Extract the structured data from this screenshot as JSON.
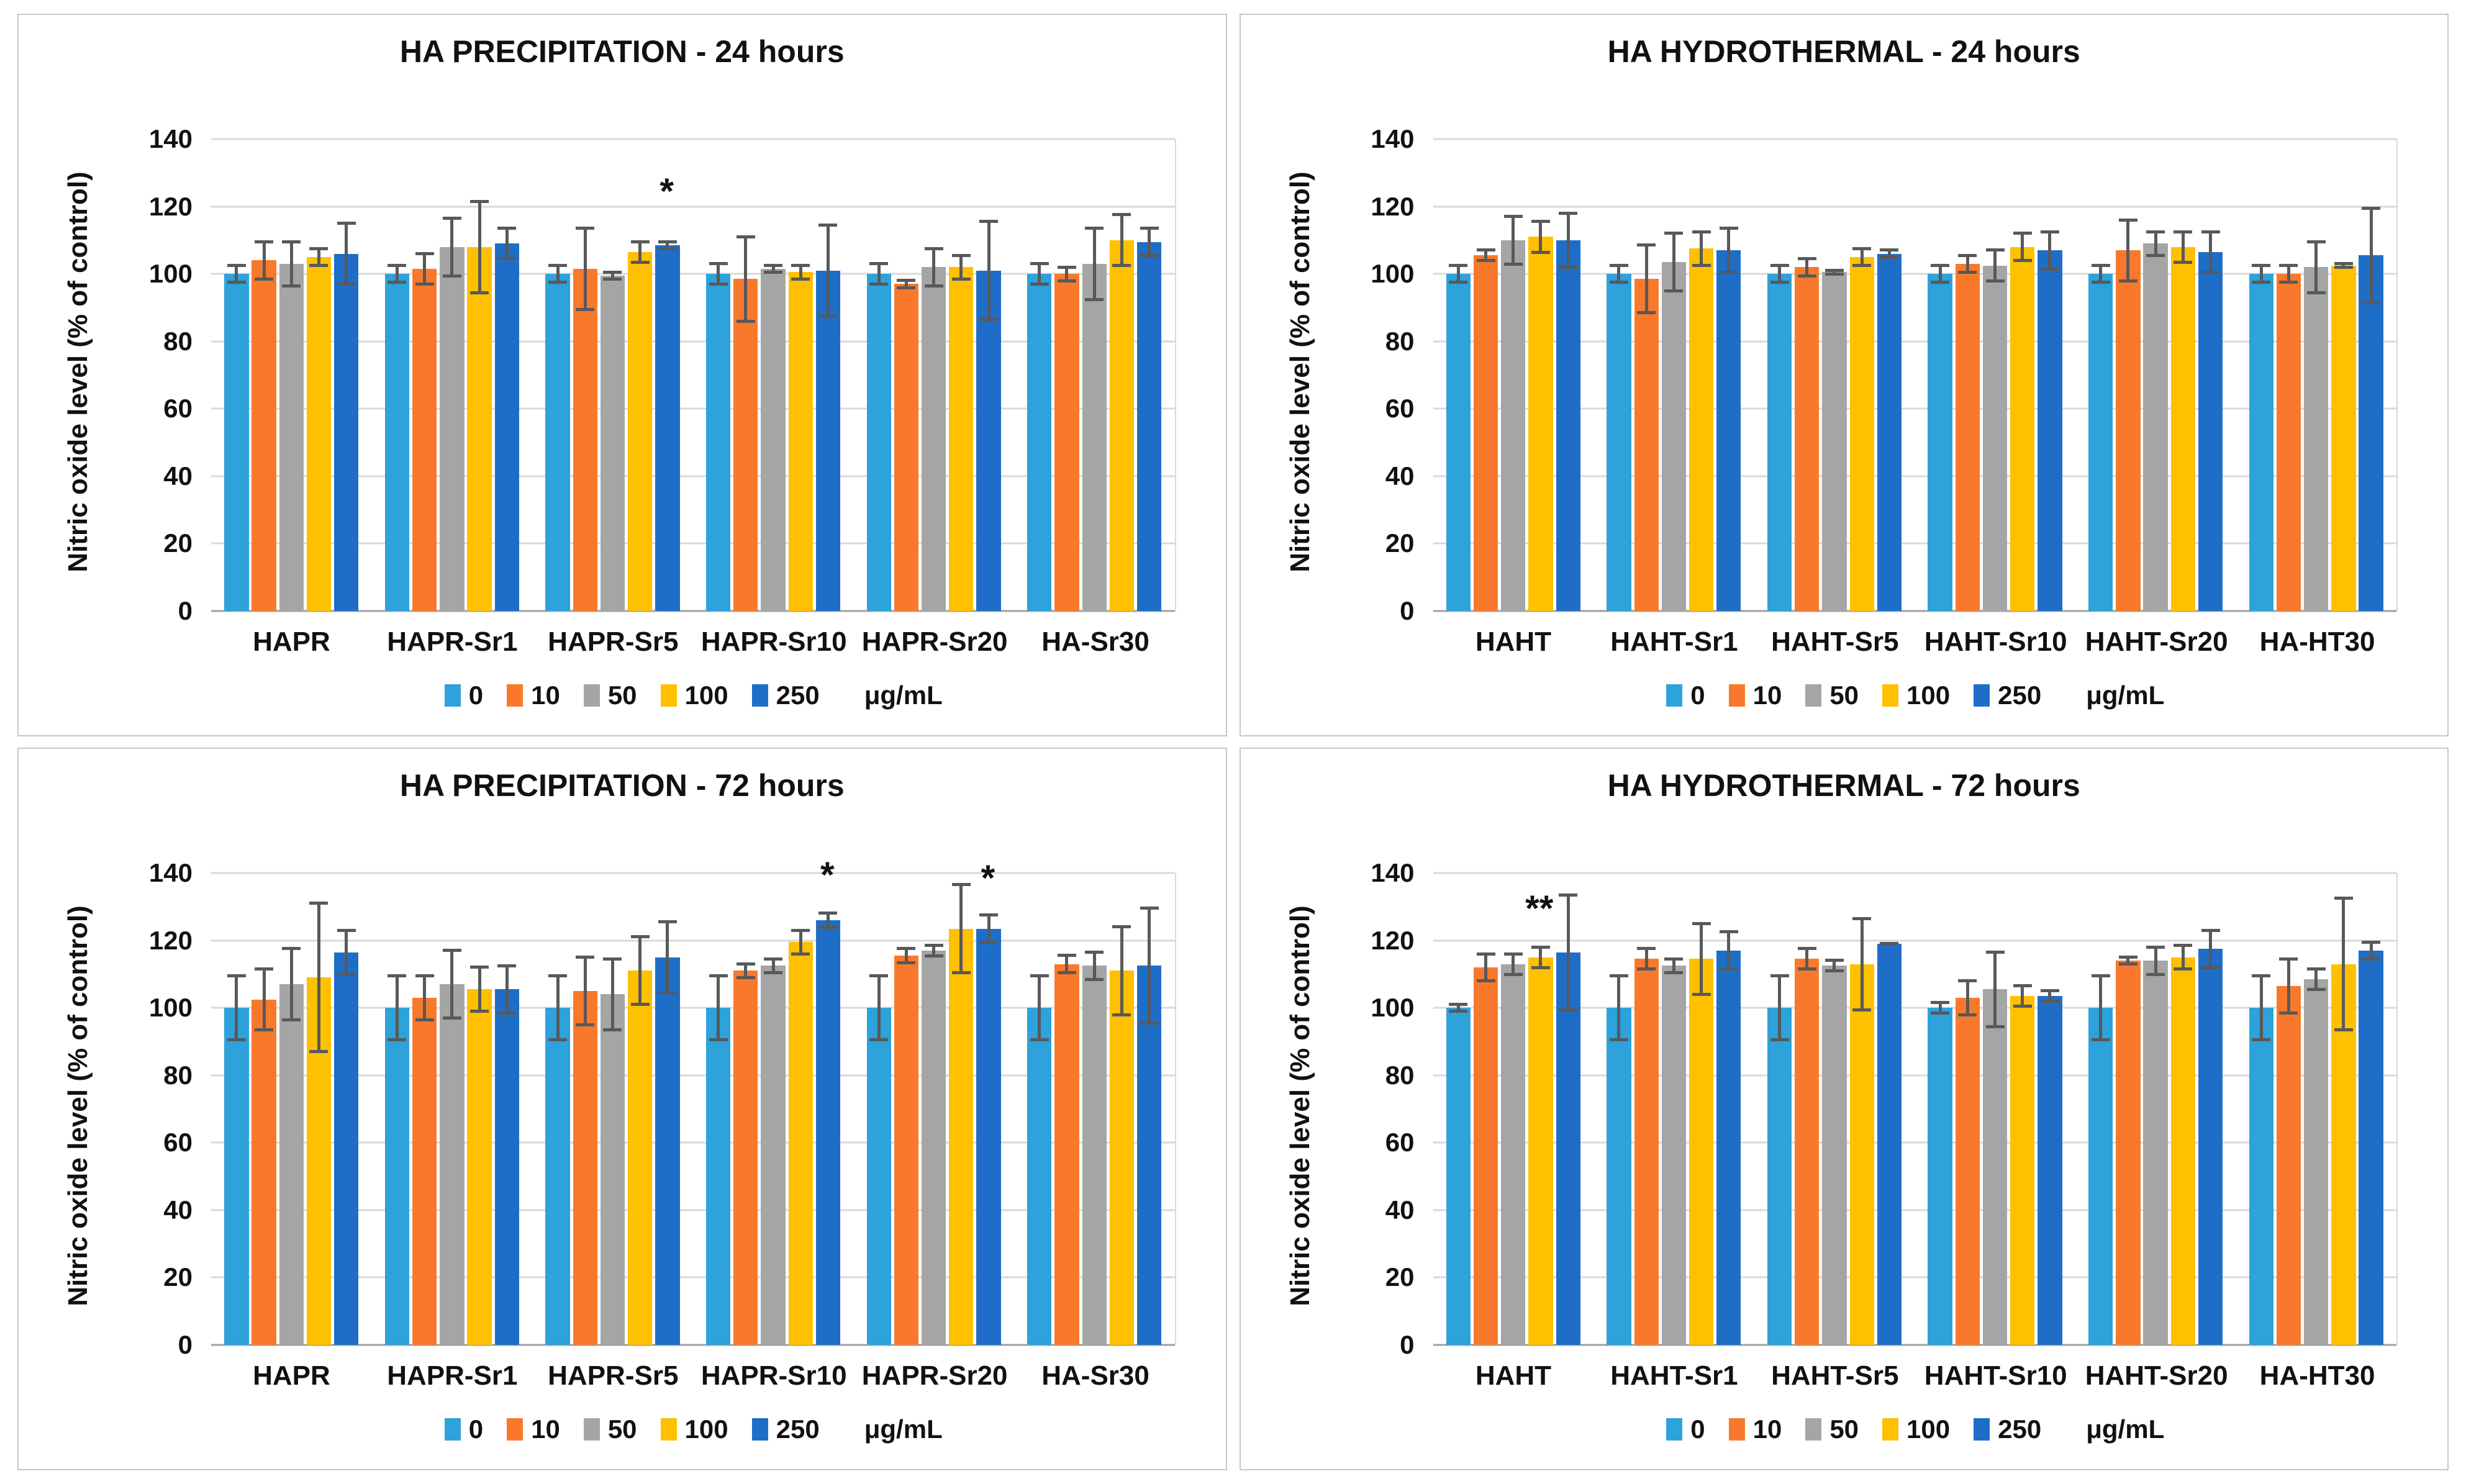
{
  "figure": {
    "background": "#ffffff",
    "panel_border_color": "#c7c7c7",
    "gridline_color": "#d9d9d9",
    "error_bar_color": "#58595b"
  },
  "legend": {
    "items": [
      {
        "label": "0",
        "color": "#2da2db"
      },
      {
        "label": "10",
        "color": "#f8792b"
      },
      {
        "label": "50",
        "color": "#a5a5a5"
      },
      {
        "label": "100",
        "color": "#ffc000"
      },
      {
        "label": "250",
        "color": "#1e6ec8"
      }
    ],
    "unit": "μg/mL"
  },
  "chart_data": [
    {
      "type": "bar",
      "title": "HA PRECIPITATION - 24 hours",
      "ylabel": "Nitric oxide level (% of control)",
      "ylim": [
        0,
        140
      ],
      "ytick_step": 20,
      "grid": "horizontal",
      "legend_position": "bottom",
      "series_labels": [
        "0",
        "10",
        "50",
        "100",
        "250"
      ],
      "unit": "μg/mL",
      "categories": [
        "HAPR",
        "HAPR-Sr1",
        "HAPR-Sr5",
        "HAPR-Sr10",
        "HAPR-Sr20",
        "HA-Sr30"
      ],
      "values": [
        [
          100,
          104,
          103,
          105,
          106
        ],
        [
          100,
          101.5,
          108,
          108,
          109
        ],
        [
          100,
          101.5,
          99.5,
          106.5,
          108.5
        ],
        [
          100,
          98.5,
          101.5,
          100.5,
          101
        ],
        [
          100,
          97,
          102,
          102,
          101
        ],
        [
          100,
          100,
          103,
          110,
          109.5
        ]
      ],
      "errors": [
        [
          3,
          6,
          7,
          3,
          9.5
        ],
        [
          3,
          5,
          9,
          14,
          5
        ],
        [
          3,
          12.5,
          1.5,
          3.5,
          1.5
        ],
        [
          3.5,
          13,
          1.5,
          2.5,
          14
        ],
        [
          3.5,
          1.5,
          6,
          4,
          15
        ],
        [
          3.5,
          2.5,
          11,
          8,
          4.5
        ]
      ],
      "annotations": [
        {
          "category_index": 2,
          "series_index": 4,
          "text": "*",
          "y": 121
        }
      ]
    },
    {
      "type": "bar",
      "title": "HA HYDROTHERMAL - 24 hours",
      "ylabel": "Nitric oxide level (% of control)",
      "ylim": [
        0,
        140
      ],
      "ytick_step": 20,
      "grid": "horizontal",
      "legend_position": "bottom",
      "series_labels": [
        "0",
        "10",
        "50",
        "100",
        "250"
      ],
      "unit": "μg/mL",
      "categories": [
        "HAHT",
        "HAHT-Sr1",
        "HAHT-Sr5",
        "HAHT-Sr10",
        "HAHT-Sr20",
        "HA-HT30"
      ],
      "values": [
        [
          100,
          105.5,
          110,
          111,
          110
        ],
        [
          100,
          98.5,
          103.5,
          107.5,
          107
        ],
        [
          100,
          102,
          100.5,
          105,
          106
        ],
        [
          100,
          103,
          102.5,
          108,
          107
        ],
        [
          100,
          107,
          109,
          108,
          106.5
        ],
        [
          100,
          100,
          102,
          102.5,
          105.5
        ]
      ],
      "errors": [
        [
          3,
          2,
          7.5,
          5,
          8.5
        ],
        [
          3,
          10.5,
          9,
          5.5,
          7
        ],
        [
          3,
          3,
          1,
          3,
          1.5
        ],
        [
          3,
          3,
          5,
          4.5,
          6
        ],
        [
          3,
          9.5,
          4,
          5,
          6.5
        ],
        [
          3,
          3,
          8,
          1,
          14.5
        ]
      ],
      "annotations": []
    },
    {
      "type": "bar",
      "title": "HA PRECIPITATION - 72 hours",
      "ylabel": "Nitric oxide level (% of control)",
      "ylim": [
        0,
        140
      ],
      "ytick_step": 20,
      "grid": "horizontal",
      "legend_position": "bottom",
      "series_labels": [
        "0",
        "10",
        "50",
        "100",
        "250"
      ],
      "unit": "μg/mL",
      "categories": [
        "HAPR",
        "HAPR-Sr1",
        "HAPR-Sr5",
        "HAPR-Sr10",
        "HAPR-Sr20",
        "HA-Sr30"
      ],
      "values": [
        [
          100,
          102.5,
          107,
          109,
          116.5
        ],
        [
          100,
          103,
          107,
          105.5,
          105.5
        ],
        [
          100,
          105,
          104,
          111,
          115
        ],
        [
          100,
          111,
          112.5,
          119.5,
          126
        ],
        [
          100,
          115.5,
          117,
          123.5,
          123.5
        ],
        [
          100,
          113,
          112.5,
          111,
          112.5
        ]
      ],
      "errors": [
        [
          10,
          9.5,
          11,
          22.5,
          7
        ],
        [
          10,
          7,
          10.5,
          7,
          7.5
        ],
        [
          10,
          10.5,
          11,
          10.5,
          11
        ],
        [
          10,
          2.5,
          2.5,
          4,
          2.5
        ],
        [
          10,
          2.5,
          2,
          13.5,
          4.5
        ],
        [
          10,
          3,
          4.5,
          13.5,
          17.5
        ]
      ],
      "annotations": [
        {
          "category_index": 3,
          "series_index": 4,
          "text": "*",
          "y": 136
        },
        {
          "category_index": 4,
          "series_index": 4,
          "text": "*",
          "y": 135
        }
      ]
    },
    {
      "type": "bar",
      "title": "HA HYDROTHERMAL - 72 hours",
      "ylabel": "Nitric oxide level (% of control)",
      "ylim": [
        0,
        140
      ],
      "ytick_step": 20,
      "grid": "horizontal",
      "legend_position": "bottom",
      "series_labels": [
        "0",
        "10",
        "50",
        "100",
        "250"
      ],
      "unit": "μg/mL",
      "categories": [
        "HAHT",
        "HAHT-Sr1",
        "HAHT-Sr5",
        "HAHT-Sr10",
        "HAHT-Sr20",
        "HA-HT30"
      ],
      "values": [
        [
          100,
          112,
          113,
          115,
          116.5
        ],
        [
          100,
          114.5,
          112.5,
          114.5,
          117
        ],
        [
          100,
          114.5,
          112.5,
          113,
          119
        ],
        [
          100,
          103,
          105.5,
          103.5,
          103.5
        ],
        [
          100,
          114,
          114,
          115,
          117.5
        ],
        [
          100,
          106.5,
          108.5,
          113,
          117
        ]
      ],
      "errors": [
        [
          1.5,
          4.5,
          3.5,
          3.5,
          17.5
        ],
        [
          10,
          3.5,
          2.5,
          11,
          6
        ],
        [
          10,
          3.5,
          2,
          14,
          0.5
        ],
        [
          2,
          5.5,
          11.5,
          3.5,
          2
        ],
        [
          10,
          1.5,
          4.5,
          4,
          6
        ],
        [
          10,
          8.5,
          3.5,
          20,
          3
        ]
      ],
      "annotations": [
        {
          "category_index": 0,
          "series_index": 3,
          "text": "**",
          "y": 126
        }
      ]
    }
  ]
}
